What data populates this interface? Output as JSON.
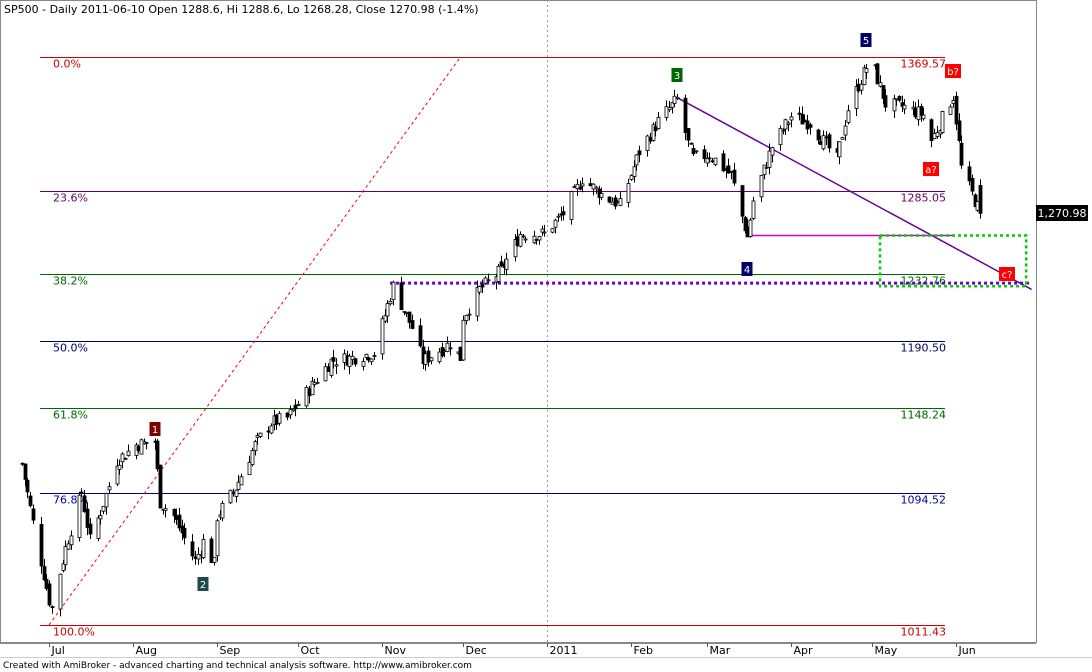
{
  "header": {
    "title": "SP500 - Daily 2011-06-10 Open 1288.6, Hi 1288.6, Lo 1268.28, Close 1270.98 (-1.4%)"
  },
  "footer": {
    "credit": "Created with AmiBroker - advanced charting and technical analysis software. http://www.amibroker.com"
  },
  "chart_data": {
    "type": "candlestick",
    "symbol": "SP500",
    "period": "Daily",
    "last_bar": {
      "date": "2011-06-10",
      "open": 1288.6,
      "high": 1288.6,
      "low": 1268.28,
      "close": 1270.98,
      "change": "-1.4%"
    },
    "last_price_label": "1,270.98",
    "x_tick_labels": [
      "Jul",
      "Aug",
      "Sep",
      "Oct",
      "Nov",
      "Dec",
      "2011",
      "Feb",
      "Mar",
      "Apr",
      "May",
      "Jun"
    ],
    "fibonacci_levels": [
      {
        "pct": "0.0%",
        "value": 1369.57,
        "label": "1369.57",
        "color": "#cc0000"
      },
      {
        "pct": "23.6%",
        "value": 1285.05,
        "label": "1285.05",
        "color": "#660066"
      },
      {
        "pct": "38.2%",
        "value": 1232.76,
        "label": "1232.76",
        "color": "#006600"
      },
      {
        "pct": "50.0%",
        "value": 1190.5,
        "label": "1190.50",
        "color": "#000066"
      },
      {
        "pct": "61.8%",
        "value": 1148.24,
        "label": "1148.24",
        "color": "#006600"
      },
      {
        "pct": "76.8%",
        "value": 1094.52,
        "label": "1094.52",
        "color": "#000099"
      },
      {
        "pct": "100.0%",
        "value": 1011.43,
        "label": "1011.43",
        "color": "#cc0000"
      }
    ],
    "wave_labels": [
      {
        "text": "1",
        "bg": "#7a0000",
        "date": "2010-08-09"
      },
      {
        "text": "2",
        "bg": "#1f4a48",
        "date": "2010-08-27"
      },
      {
        "text": "3",
        "bg": "#006600",
        "date": "2011-02-18"
      },
      {
        "text": "4",
        "bg": "#000066",
        "date": "2011-03-16"
      },
      {
        "text": "5",
        "bg": "#000066",
        "date": "2011-04-29"
      },
      {
        "text": "a?",
        "bg": "#ff0000",
        "date": "2011-05-23"
      },
      {
        "text": "b?",
        "bg": "#ff0000",
        "date": "2011-05-31"
      },
      {
        "text": "c?",
        "bg": "#ff0000",
        "date": "2011-06-20"
      }
    ],
    "series": [
      {
        "date": "2010-06-21",
        "close": 1113
      },
      {
        "date": "2010-06-25",
        "close": 1076
      },
      {
        "date": "2010-07-01",
        "close": 1027
      },
      {
        "date": "2010-07-02",
        "close": 1022
      },
      {
        "date": "2010-07-07",
        "close": 1060
      },
      {
        "date": "2010-07-13",
        "close": 1095
      },
      {
        "date": "2010-07-16",
        "close": 1065
      },
      {
        "date": "2010-07-20",
        "close": 1083
      },
      {
        "date": "2010-07-26",
        "close": 1115
      },
      {
        "date": "2010-08-02",
        "close": 1125
      },
      {
        "date": "2010-08-09",
        "close": 1127
      },
      {
        "date": "2010-08-11",
        "close": 1089
      },
      {
        "date": "2010-08-16",
        "close": 1080
      },
      {
        "date": "2010-08-24",
        "close": 1052
      },
      {
        "date": "2010-08-27",
        "close": 1064
      },
      {
        "date": "2010-08-31",
        "close": 1050
      },
      {
        "date": "2010-09-01",
        "close": 1080
      },
      {
        "date": "2010-09-08",
        "close": 1098
      },
      {
        "date": "2010-09-15",
        "close": 1125
      },
      {
        "date": "2010-09-21",
        "close": 1139
      },
      {
        "date": "2010-09-27",
        "close": 1142
      },
      {
        "date": "2010-10-05",
        "close": 1160
      },
      {
        "date": "2010-10-13",
        "close": 1178
      },
      {
        "date": "2010-10-21",
        "close": 1180
      },
      {
        "date": "2010-10-29",
        "close": 1183
      },
      {
        "date": "2010-11-05",
        "close": 1225
      },
      {
        "date": "2010-11-12",
        "close": 1199
      },
      {
        "date": "2010-11-16",
        "close": 1178
      },
      {
        "date": "2010-11-26",
        "close": 1189
      },
      {
        "date": "2010-11-30",
        "close": 1180
      },
      {
        "date": "2010-12-01",
        "close": 1206
      },
      {
        "date": "2010-12-07",
        "close": 1223
      },
      {
        "date": "2010-12-15",
        "close": 1235
      },
      {
        "date": "2010-12-22",
        "close": 1258
      },
      {
        "date": "2010-12-31",
        "close": 1258
      },
      {
        "date": "2011-01-07",
        "close": 1271
      },
      {
        "date": "2011-01-14",
        "close": 1293
      },
      {
        "date": "2011-01-21",
        "close": 1283
      },
      {
        "date": "2011-01-28",
        "close": 1276
      },
      {
        "date": "2011-02-04",
        "close": 1310
      },
      {
        "date": "2011-02-11",
        "close": 1329
      },
      {
        "date": "2011-02-18",
        "close": 1343
      },
      {
        "date": "2011-02-22",
        "close": 1315
      },
      {
        "date": "2011-02-24",
        "close": 1306
      },
      {
        "date": "2011-03-02",
        "close": 1308
      },
      {
        "date": "2011-03-10",
        "close": 1295
      },
      {
        "date": "2011-03-16",
        "close": 1256
      },
      {
        "date": "2011-03-18",
        "close": 1279
      },
      {
        "date": "2011-03-25",
        "close": 1313
      },
      {
        "date": "2011-04-01",
        "close": 1332
      },
      {
        "date": "2011-04-08",
        "close": 1328
      },
      {
        "date": "2011-04-18",
        "close": 1305
      },
      {
        "date": "2011-04-22",
        "close": 1337
      },
      {
        "date": "2011-04-29",
        "close": 1363
      },
      {
        "date": "2011-05-02",
        "close": 1361
      },
      {
        "date": "2011-05-06",
        "close": 1340
      },
      {
        "date": "2011-05-13",
        "close": 1338
      },
      {
        "date": "2011-05-20",
        "close": 1333
      },
      {
        "date": "2011-05-23",
        "close": 1317
      },
      {
        "date": "2011-05-27",
        "close": 1331
      },
      {
        "date": "2011-05-31",
        "close": 1345
      },
      {
        "date": "2011-06-03",
        "close": 1300
      },
      {
        "date": "2011-06-08",
        "close": 1279
      },
      {
        "date": "2011-06-10",
        "close": 1270.98
      }
    ]
  }
}
